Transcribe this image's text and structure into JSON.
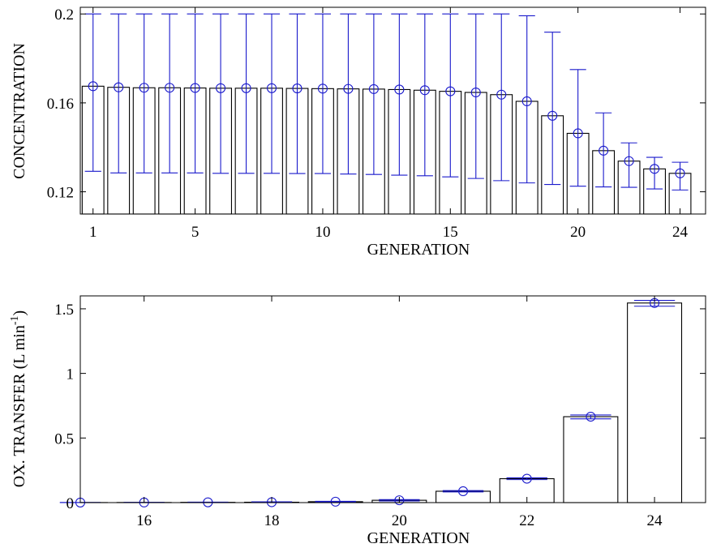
{
  "chart_data": [
    {
      "type": "bar",
      "xlabel": "GENERATION",
      "ylabel": "CONCENTRATION",
      "xlim": [
        0.5,
        25
      ],
      "ylim": [
        0.11,
        0.203
      ],
      "xticks": [
        1,
        5,
        10,
        15,
        20,
        24
      ],
      "yticks": [
        0.12,
        0.16,
        0.2
      ],
      "ytick_labels": [
        "0.12",
        "0.16",
        "0.2"
      ],
      "grid": false,
      "series": [
        {
          "x": [
            1,
            2,
            3,
            4,
            5,
            6,
            7,
            8,
            9,
            10,
            11,
            12,
            13,
            14,
            15,
            16,
            17,
            18,
            19,
            20,
            21,
            22,
            23,
            24
          ],
          "values": [
            0.1675,
            0.167,
            0.1668,
            0.1668,
            0.1667,
            0.1666,
            0.1666,
            0.1666,
            0.1665,
            0.1664,
            0.1663,
            0.1662,
            0.166,
            0.1657,
            0.1652,
            0.1647,
            0.1637,
            0.1607,
            0.1542,
            0.1463,
            0.1385,
            0.1338,
            0.1303,
            0.1283
          ],
          "err_low": [
            0.1292,
            0.1285,
            0.1285,
            0.1285,
            0.1285,
            0.1283,
            0.1283,
            0.1283,
            0.1282,
            0.1282,
            0.128,
            0.1278,
            0.1275,
            0.1272,
            0.1267,
            0.126,
            0.125,
            0.124,
            0.1233,
            0.1225,
            0.1222,
            0.122,
            0.1213,
            0.1208
          ],
          "err_high": [
            0.2,
            0.2,
            0.2,
            0.2,
            0.2,
            0.2,
            0.2,
            0.2,
            0.2,
            0.2,
            0.2,
            0.2,
            0.2,
            0.2,
            0.2,
            0.2,
            0.2,
            0.1992,
            0.1918,
            0.175,
            0.1555,
            0.142,
            0.1355,
            0.1333
          ]
        }
      ]
    },
    {
      "type": "bar",
      "xlabel": "GENERATION",
      "ylabel": "OX. TRANSFER (L min",
      "ylabel_sup": "-1",
      "ylabel_close": ")",
      "xlim": [
        15,
        24.8
      ],
      "ylim": [
        0,
        1.6
      ],
      "xticks": [
        16,
        18,
        20,
        22,
        24
      ],
      "yticks": [
        0,
        0.5,
        1,
        1.5
      ],
      "ytick_labels": [
        "0",
        "0.5",
        "1",
        "1.5"
      ],
      "grid": false,
      "series": [
        {
          "x": [
            15,
            16,
            17,
            18,
            19,
            20,
            21,
            22,
            23,
            24
          ],
          "values": [
            0.0005,
            0.001,
            0.002,
            0.003,
            0.007,
            0.018,
            0.088,
            0.185,
            0.665,
            1.545
          ],
          "err_low": [
            0.0,
            0.0,
            0.0,
            0.0,
            0.004,
            0.013,
            0.083,
            0.178,
            0.648,
            1.52
          ],
          "err_high": [
            0.001,
            0.002,
            0.004,
            0.006,
            0.01,
            0.023,
            0.093,
            0.192,
            0.678,
            1.565
          ]
        }
      ]
    }
  ]
}
